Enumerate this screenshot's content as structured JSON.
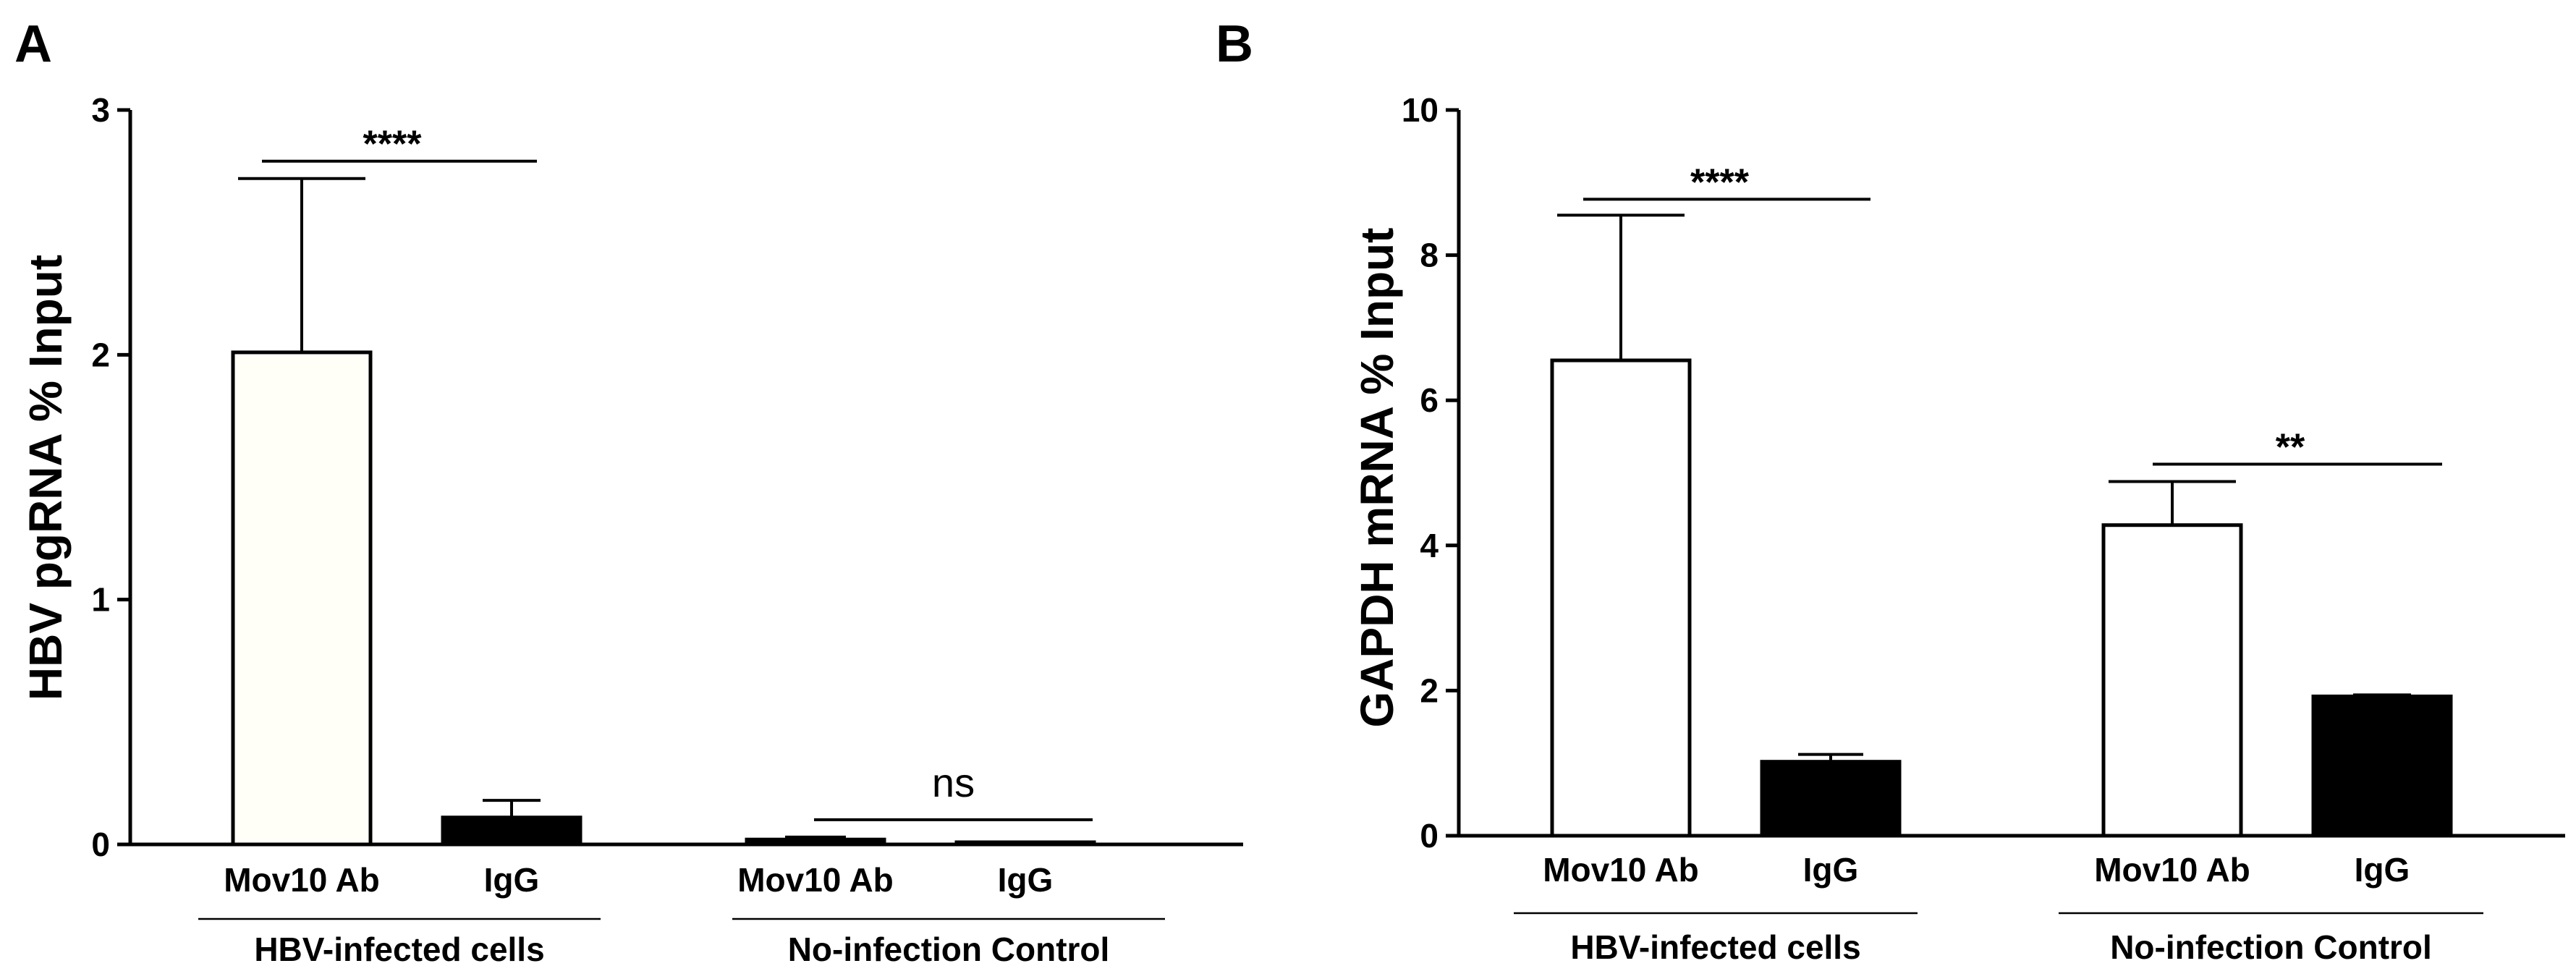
{
  "chart_data": [
    {
      "panel": "A",
      "type": "bar",
      "ylabel": "HBV pgRNA  % Input",
      "ylim": [
        0,
        3
      ],
      "yticks": [
        0,
        1,
        2,
        3
      ],
      "groups": [
        {
          "label": "HBV-infected cells",
          "bars": [
            {
              "category": "Mov10 Ab",
              "value": 2.01,
              "error": 0.71,
              "fill": "#fffff8"
            },
            {
              "category": "IgG",
              "value": 0.11,
              "error": 0.07,
              "fill": "#000000"
            }
          ],
          "significance": "****"
        },
        {
          "label": "No-infection Control",
          "bars": [
            {
              "category": "Mov10 Ab",
              "value": 0.02,
              "error": 0.01,
              "fill": "#000000"
            },
            {
              "category": "IgG",
              "value": 0.005,
              "error": 0.004,
              "fill": "#000000"
            }
          ],
          "significance": "ns"
        }
      ]
    },
    {
      "panel": "B",
      "type": "bar",
      "ylabel": "GAPDH mRNA % Input",
      "ylim": [
        0,
        10
      ],
      "yticks": [
        0,
        2,
        4,
        6,
        8,
        10
      ],
      "groups": [
        {
          "label": "HBV-infected cells",
          "bars": [
            {
              "category": "Mov10 Ab",
              "value": 6.55,
              "error": 2.0,
              "fill": "#ffffff"
            },
            {
              "category": "IgG",
              "value": 1.02,
              "error": 0.1,
              "fill": "#000000"
            }
          ],
          "significance": "****"
        },
        {
          "label": "No-infection Control",
          "bars": [
            {
              "category": "Mov10 Ab",
              "value": 4.28,
              "error": 0.6,
              "fill": "#ffffff"
            },
            {
              "category": "IgG",
              "value": 1.92,
              "error": 0.02,
              "fill": "#000000"
            }
          ],
          "significance": "**"
        }
      ]
    }
  ]
}
